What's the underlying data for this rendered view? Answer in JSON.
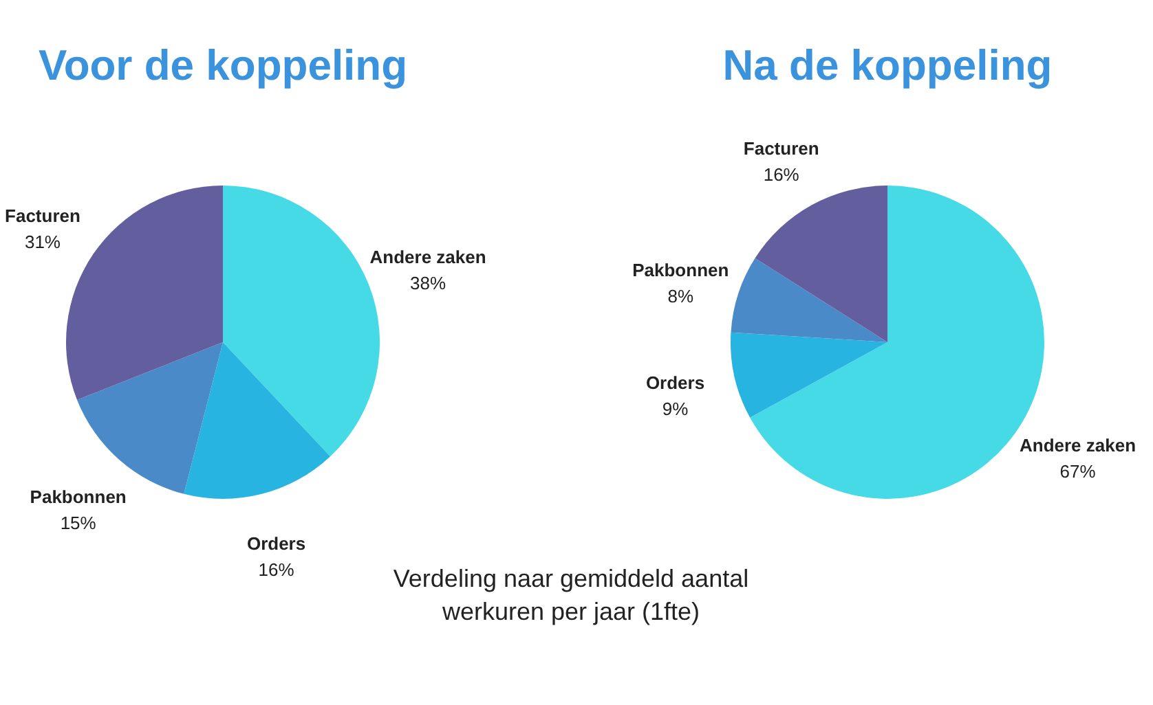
{
  "chart_data": [
    {
      "type": "pie",
      "title": "Voor de koppeling",
      "categories": [
        "Andere zaken",
        "Orders",
        "Pakbonnen",
        "Facturen"
      ],
      "values": [
        38,
        16,
        15,
        31
      ],
      "value_labels": [
        "38%",
        "16%",
        "15%",
        "31%"
      ],
      "colors": [
        "#45dae6",
        "#27b4e0",
        "#4a8ac8",
        "#635e9e"
      ],
      "annotations": [
        "Verdeling naar gemiddeld aantal\nwerkuren per jaar (1fte)"
      ]
    },
    {
      "type": "pie",
      "title": "Na de koppeling",
      "categories": [
        "Andere zaken",
        "Orders",
        "Pakbonnen",
        "Facturen"
      ],
      "values": [
        67,
        9,
        8,
        16
      ],
      "value_labels": [
        "67%",
        "9%",
        "8%",
        "16%"
      ],
      "colors": [
        "#45dae6",
        "#27b4e0",
        "#4a8ac8",
        "#635e9e"
      ]
    }
  ]
}
